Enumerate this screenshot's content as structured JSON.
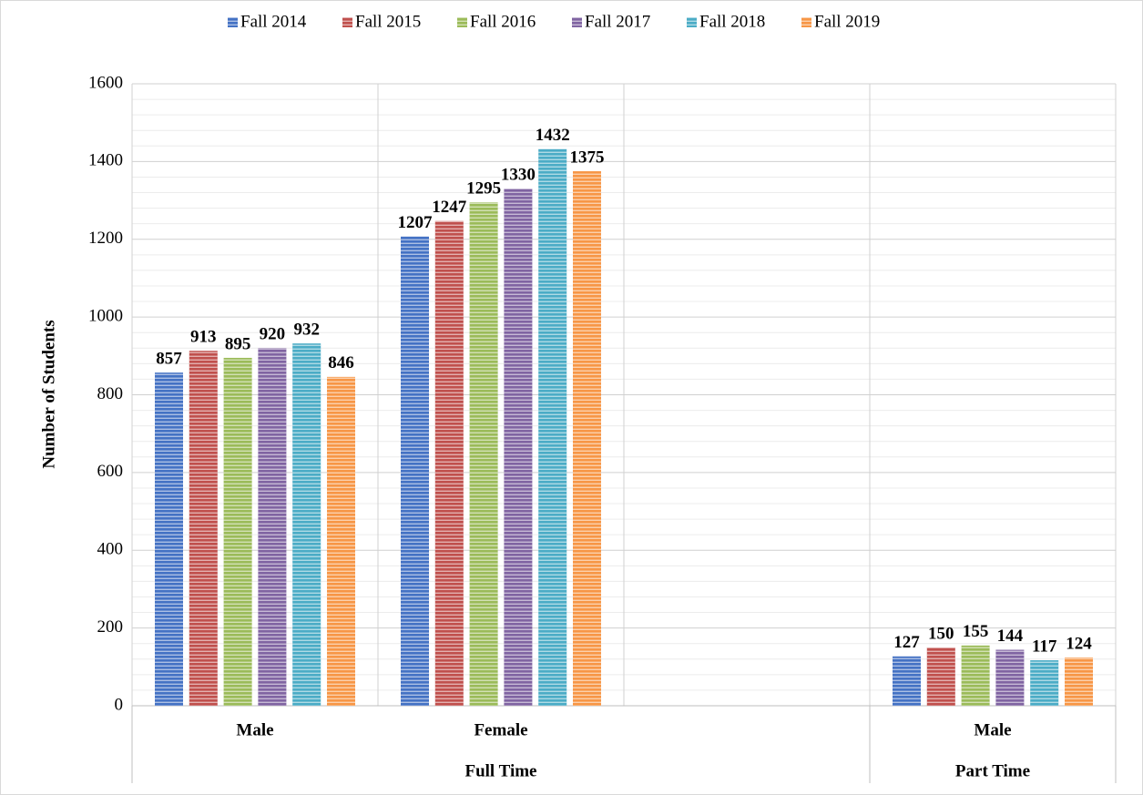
{
  "chart_data": {
    "type": "bar",
    "y_label": "Number of Students",
    "categories": [
      "Male",
      "Female",
      null,
      "Male"
    ],
    "groups": [
      {
        "name": "Full Time",
        "count": 3
      },
      {
        "name": "Part Time",
        "count": 1
      }
    ],
    "series": [
      {
        "name": "Fall 2014",
        "color": "#4472c4",
        "values": [
          857,
          1207,
          null,
          127
        ]
      },
      {
        "name": "Fall 2015",
        "color": "#c0504d",
        "values": [
          913,
          1247,
          null,
          150
        ]
      },
      {
        "name": "Fall 2016",
        "color": "#9bbb59",
        "values": [
          895,
          1295,
          null,
          155
        ]
      },
      {
        "name": "Fall 2017",
        "color": "#8064a2",
        "values": [
          920,
          1330,
          null,
          144
        ]
      },
      {
        "name": "Fall 2018",
        "color": "#4bacc6",
        "values": [
          932,
          1432,
          null,
          117
        ]
      },
      {
        "name": "Fall 2019",
        "color": "#f79646",
        "values": [
          846,
          1375,
          null,
          124
        ]
      }
    ],
    "ylim": [
      0,
      1600
    ],
    "yticks": [
      0,
      200,
      400,
      600,
      800,
      1000,
      1200,
      1400,
      1600
    ],
    "minor_yticks": [
      40,
      80,
      120,
      160,
      240,
      280,
      320,
      360,
      440,
      480,
      520,
      560,
      640,
      680,
      720,
      760,
      840,
      880,
      920,
      960,
      1040,
      1080,
      1120,
      1160,
      1240,
      1280,
      1320,
      1360,
      1440,
      1480,
      1520,
      1560
    ],
    "grid": true,
    "legend": "top"
  }
}
